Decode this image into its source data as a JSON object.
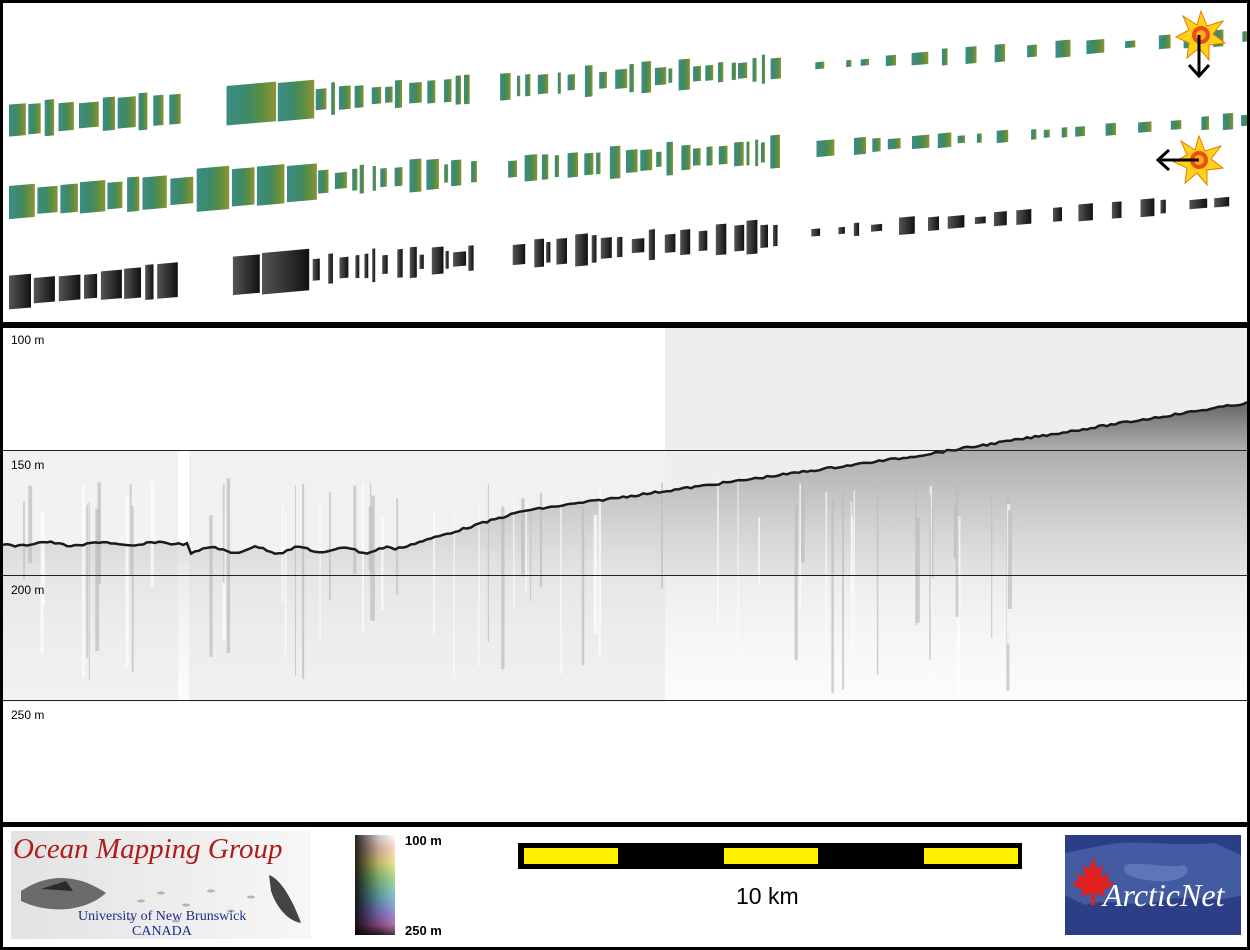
{
  "depth_labels": [
    "100 m",
    "150 m",
    "200 m",
    "250 m"
  ],
  "legend": {
    "color_bar_top": "100 m",
    "color_bar_bottom": "250 m",
    "scale_label": "10 km"
  },
  "logos": {
    "omg_title": "Ocean Mapping Group",
    "omg_line1": "University of New Brunswick",
    "omg_line2": "CANADA",
    "arcticnet": "ArcticNet"
  },
  "colors": {
    "swath_teal": "#3d8a80",
    "swath_green": "#4f8a4c",
    "swath_olive": "#8a9236",
    "swath_gray": "#444444",
    "sun": "#ffd21a",
    "scale_yellow": "#ffef00",
    "omg_red": "#b01c1c",
    "arcticnet_blue": "#2c3f86"
  },
  "icons": {
    "sun_light_top": "sun-icon",
    "sun_light_middle": "sun-icon",
    "arrow_down": "arrow-down-icon",
    "arrow_left": "arrow-left-icon"
  }
}
